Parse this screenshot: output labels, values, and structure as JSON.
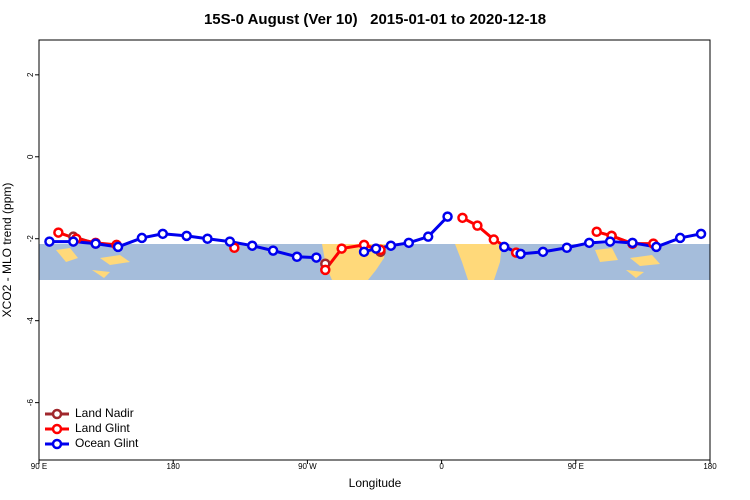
{
  "chart_data": {
    "type": "line",
    "title": "15S-0 August (Ver 10)   2015-01-01 to 2020-12-18",
    "xlabel": "Longitude",
    "ylabel": "XCO2 - MLO trend (ppm)",
    "xlim": [
      90,
      540
    ],
    "xticks": [
      {
        "value": 90,
        "label": "90 E"
      },
      180,
      {
        "value": 270,
        "label": "90 W"
      },
      {
        "value": 360,
        "label": "0"
      },
      {
        "value": 450,
        "label": "90 E"
      },
      {
        "value": 540,
        "label": "180"
      }
    ],
    "ylim": [
      -7.4,
      2.85
    ],
    "yticks": [
      2,
      0,
      -2,
      -4,
      -6
    ],
    "legend": "bottomleft",
    "series": [
      {
        "name": "Land Nadir",
        "color": "#a0282d",
        "x": [
          113,
          128,
          null,
          282,
          null,
          319,
          null,
          474,
          488
        ],
        "values": [
          -1.95,
          -2.12,
          null,
          -2.61,
          null,
          -2.32,
          null,
          -1.93,
          -2.12
        ]
      },
      {
        "name": "Land Glint",
        "color": "#ff0000",
        "x": [
          103,
          115,
          128,
          142,
          null,
          221,
          null,
          282,
          293,
          308,
          319,
          null,
          374,
          384,
          395,
          410,
          null,
          464,
          474,
          488,
          502
        ],
        "values": [
          -1.85,
          -2.0,
          -2.1,
          -2.15,
          null,
          -2.22,
          null,
          -2.76,
          -2.24,
          -2.15,
          -2.27,
          null,
          -1.49,
          -1.68,
          -2.02,
          -2.34,
          null,
          -1.83,
          -1.93,
          -2.12,
          -2.12
        ]
      },
      {
        "name": "Ocean Glint",
        "color": "#0000ee",
        "x": [
          97,
          113,
          128,
          143,
          159,
          173,
          189,
          203,
          218,
          233,
          247,
          263,
          276,
          null,
          308,
          316,
          326,
          338,
          351,
          364,
          null,
          402,
          413,
          428,
          444,
          459,
          473,
          488,
          504,
          520,
          534
        ],
        "values": [
          -2.07,
          -2.07,
          -2.12,
          -2.2,
          -1.98,
          -1.88,
          -1.93,
          -2.0,
          -2.07,
          -2.17,
          -2.29,
          -2.44,
          -2.46,
          null,
          -2.32,
          -2.24,
          -2.17,
          -2.1,
          -1.95,
          -1.46,
          null,
          -2.2,
          -2.37,
          -2.32,
          -2.22,
          -2.1,
          -2.07,
          -2.1,
          -2.2,
          -1.98,
          -1.88
        ]
      }
    ]
  }
}
